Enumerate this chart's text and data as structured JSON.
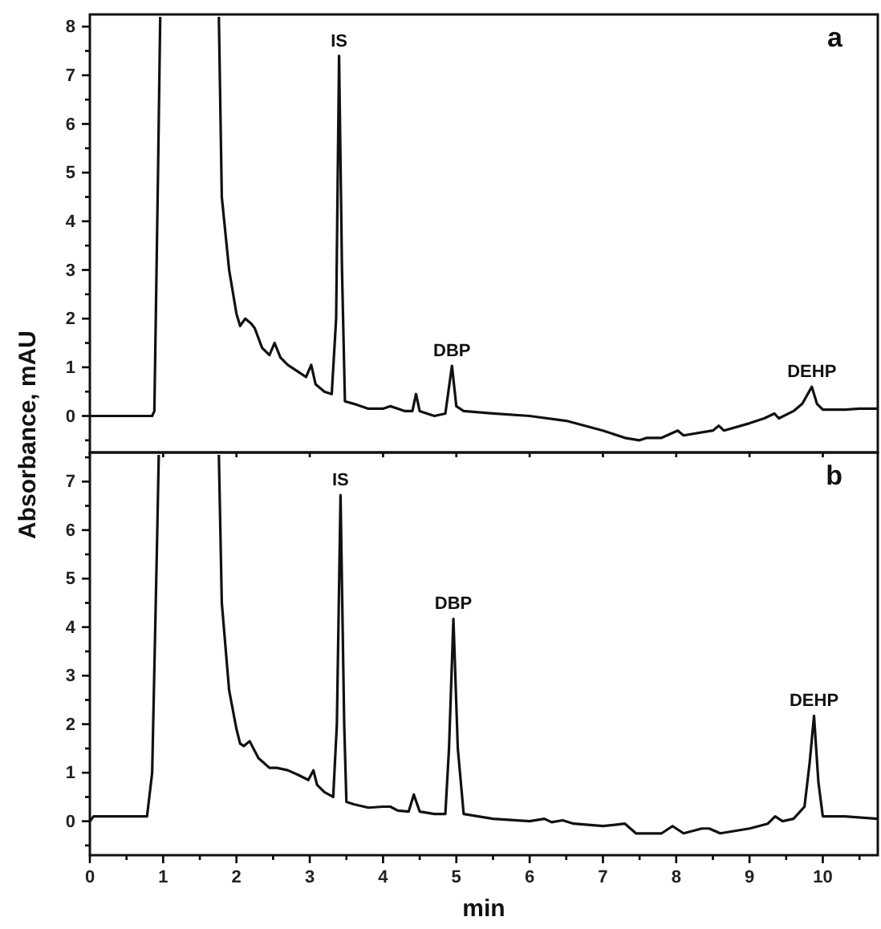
{
  "chart_data": [
    {
      "type": "line",
      "title": "a",
      "ylabel": "Absorbance, mAU",
      "tick_labels": "y",
      "line_style": "solid",
      "marker": "none",
      "xlim": [
        0,
        10.75
      ],
      "ylim": [
        -0.75,
        8.25
      ],
      "xticks": [
        {
          "value": 0,
          "label": null
        },
        {
          "value": 1,
          "label": null
        },
        {
          "value": 2,
          "label": null
        },
        {
          "value": 3,
          "label": null
        },
        {
          "value": 4,
          "label": null
        },
        {
          "value": 5,
          "label": null
        },
        {
          "value": 6,
          "label": null
        },
        {
          "value": 7,
          "label": null
        },
        {
          "value": 8,
          "label": null
        },
        {
          "value": 9,
          "label": null
        },
        {
          "value": 10,
          "label": null
        }
      ],
      "yticks": [
        {
          "value": -0.5,
          "label": null
        },
        0,
        {
          "value": 0.5,
          "label": null
        },
        1,
        {
          "value": 1.5,
          "label": null
        },
        2,
        {
          "value": 2.5,
          "label": null
        },
        3,
        {
          "value": 3.5,
          "label": null
        },
        4,
        {
          "value": 4.5,
          "label": null
        },
        5,
        {
          "value": 5.5,
          "label": null
        },
        6,
        {
          "value": 6.5,
          "label": null
        },
        7,
        {
          "value": 7.5,
          "label": null
        },
        8
      ],
      "series": [
        {
          "color": "#111111",
          "x": [
            0,
            0.85,
            0.88,
            0.93,
            0.96,
            0.97,
            1.75,
            1.76,
            1.8,
            1.9,
            2.0,
            2.05,
            2.12,
            2.2,
            2.25,
            2.35,
            2.45,
            2.52,
            2.6,
            2.7,
            2.85,
            2.95,
            3.02,
            3.08,
            3.2,
            3.3,
            3.36,
            3.4,
            3.44,
            3.48,
            3.6,
            3.8,
            4.0,
            4.1,
            4.3,
            4.4,
            4.45,
            4.5,
            4.7,
            4.85,
            4.94,
            5.0,
            5.1,
            5.5,
            6.0,
            6.5,
            7.0,
            7.3,
            7.5,
            7.6,
            7.8,
            8.02,
            8.1,
            8.5,
            8.58,
            8.65,
            9.0,
            9.2,
            9.34,
            9.4,
            9.6,
            9.72,
            9.85,
            9.92,
            10.0,
            10.3,
            10.5,
            10.75
          ],
          "values": [
            0,
            0,
            0.1,
            5,
            8.2,
            null,
            null,
            8.2,
            4.5,
            3,
            2.1,
            1.85,
            2.0,
            1.9,
            1.8,
            1.4,
            1.25,
            1.5,
            1.2,
            1.05,
            0.9,
            0.8,
            1.05,
            0.65,
            0.5,
            0.45,
            2,
            7.4,
            3,
            0.3,
            0.25,
            0.15,
            0.15,
            0.2,
            0.1,
            0.1,
            0.45,
            0.1,
            0.0,
            0.05,
            1.03,
            0.2,
            0.1,
            0.05,
            0,
            -0.1,
            -0.3,
            -0.45,
            -0.5,
            -0.45,
            -0.45,
            -0.3,
            -0.4,
            -0.3,
            -0.2,
            -0.3,
            -0.15,
            -0.05,
            0.05,
            -0.05,
            0.1,
            0.25,
            0.6,
            0.25,
            0.13,
            0.13,
            0.15,
            0.15
          ]
        }
      ],
      "annotations": [
        {
          "text": "IS",
          "x": 3.4,
          "y": 7.4
        },
        {
          "text": "DBP",
          "x": 4.94,
          "y": 1.03
        },
        {
          "text": "DEHP",
          "x": 9.85,
          "y": 0.6
        }
      ]
    },
    {
      "type": "line",
      "title": "b",
      "xlabel": "min",
      "line_style": "solid",
      "marker": "none",
      "xlim": [
        0,
        10.75
      ],
      "ylim": [
        -0.7,
        7.6
      ],
      "xticks": [
        0,
        {
          "value": 0.5,
          "label": null
        },
        1,
        {
          "value": 1.5,
          "label": null
        },
        2,
        {
          "value": 2.5,
          "label": null
        },
        3,
        {
          "value": 3.5,
          "label": null
        },
        4,
        {
          "value": 4.5,
          "label": null
        },
        5,
        {
          "value": 5.5,
          "label": null
        },
        6,
        {
          "value": 6.5,
          "label": null
        },
        7,
        {
          "value": 7.5,
          "label": null
        },
        8,
        {
          "value": 8.5,
          "label": null
        },
        9,
        {
          "value": 9.5,
          "label": null
        },
        10,
        {
          "value": 10.5,
          "label": null
        }
      ],
      "yticks": [
        {
          "value": -0.5,
          "label": null
        },
        0,
        {
          "value": 0.5,
          "label": null
        },
        1,
        {
          "value": 1.5,
          "label": null
        },
        2,
        {
          "value": 2.5,
          "label": null
        },
        3,
        {
          "value": 3.5,
          "label": null
        },
        4,
        {
          "value": 4.5,
          "label": null
        },
        5,
        {
          "value": 5.5,
          "label": null
        },
        6,
        {
          "value": 6.5,
          "label": null
        },
        7,
        {
          "value": 7.5,
          "label": null
        }
      ],
      "series": [
        {
          "color": "#111111",
          "x": [
            0,
            0.05,
            0.78,
            0.85,
            0.92,
            0.94,
            0.95,
            1.75,
            1.76,
            1.8,
            1.9,
            2.0,
            2.05,
            2.1,
            2.18,
            2.3,
            2.45,
            2.55,
            2.7,
            2.85,
            2.98,
            3.05,
            3.1,
            3.2,
            3.32,
            3.37,
            3.42,
            3.47,
            3.5,
            3.6,
            3.8,
            4.0,
            4.1,
            4.2,
            4.35,
            4.42,
            4.5,
            4.7,
            4.85,
            4.9,
            4.96,
            5.02,
            5.1,
            5.5,
            6.0,
            6.2,
            6.3,
            6.45,
            6.6,
            7.0,
            7.3,
            7.45,
            7.8,
            7.95,
            8.1,
            8.35,
            8.45,
            8.6,
            9.0,
            9.25,
            9.35,
            9.45,
            9.6,
            9.75,
            9.82,
            9.88,
            9.94,
            10.0,
            10.3,
            10.75
          ],
          "values": [
            0,
            0.1,
            0.1,
            1,
            6,
            7.55,
            null,
            null,
            7.55,
            4.5,
            2.7,
            1.9,
            1.6,
            1.55,
            1.65,
            1.3,
            1.1,
            1.1,
            1.05,
            0.95,
            0.85,
            1.05,
            0.75,
            0.6,
            0.5,
            2,
            6.72,
            2,
            0.4,
            0.35,
            0.28,
            0.3,
            0.3,
            0.22,
            0.2,
            0.55,
            0.2,
            0.15,
            0.15,
            1.5,
            4.17,
            1.5,
            0.15,
            0.05,
            0.0,
            0.05,
            -0.02,
            0.02,
            -0.05,
            -0.1,
            -0.05,
            -0.25,
            -0.25,
            -0.1,
            -0.25,
            -0.15,
            -0.15,
            -0.25,
            -0.15,
            -0.05,
            0.1,
            0,
            0.05,
            0.3,
            1.2,
            2.17,
            0.8,
            0.1,
            0.1,
            0.05
          ]
        }
      ],
      "annotations": [
        {
          "text": "IS",
          "x": 3.42,
          "y": 6.72
        },
        {
          "text": "DBP",
          "x": 4.96,
          "y": 4.17
        },
        {
          "text": "DEHP",
          "x": 9.88,
          "y": 2.17
        }
      ]
    }
  ]
}
